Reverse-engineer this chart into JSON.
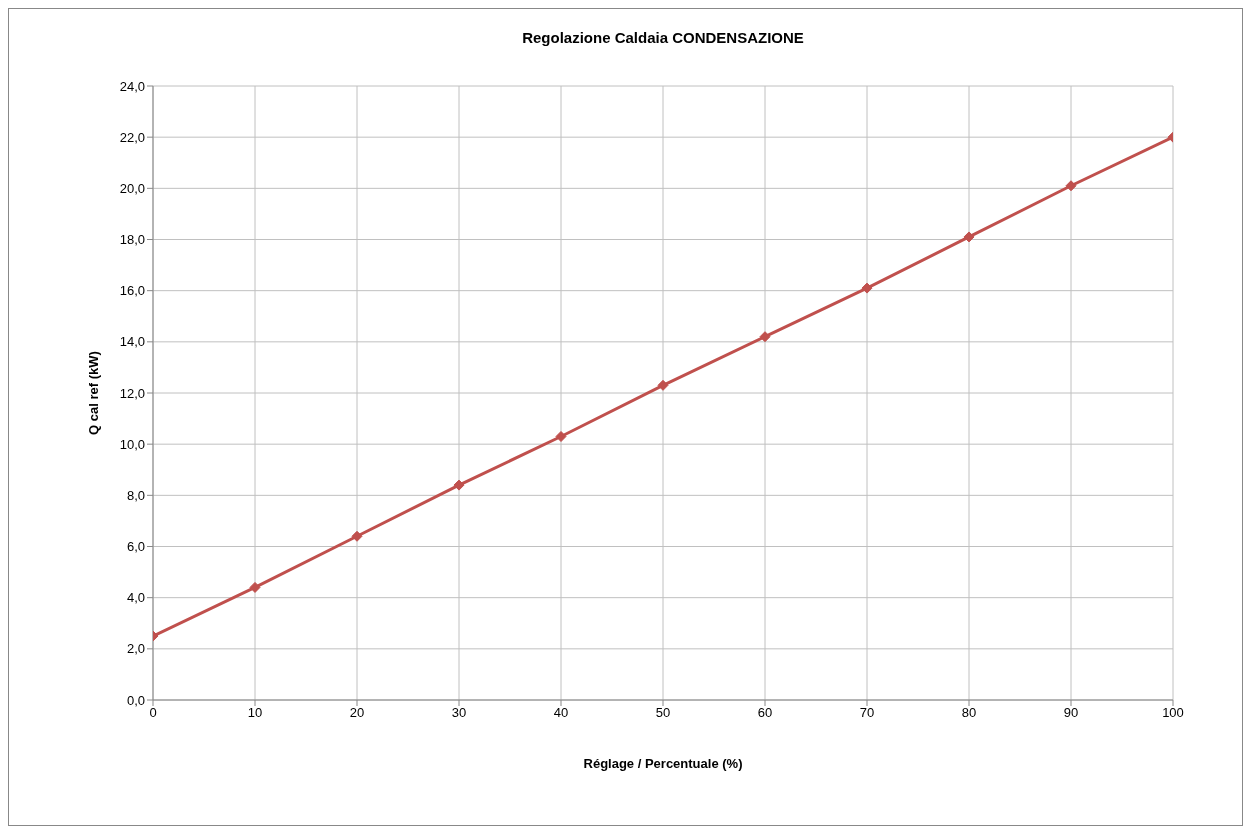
{
  "chart_data": {
    "type": "line",
    "title": "Regolazione Caldaia CONDENSAZIONE",
    "xlabel": "Réglage / Percentuale (%)",
    "ylabel": "Q cal ref (kW)",
    "x": [
      0,
      10,
      20,
      30,
      40,
      50,
      60,
      70,
      80,
      90,
      100
    ],
    "series": [
      {
        "color": "#c0504d",
        "values": [
          2.5,
          4.4,
          6.4,
          8.4,
          10.3,
          12.3,
          14.2,
          16.1,
          18.1,
          20.1,
          22.0
        ]
      }
    ],
    "xlim": [
      0,
      100
    ],
    "xticks": [
      0,
      10,
      20,
      30,
      40,
      50,
      60,
      70,
      80,
      90,
      100
    ],
    "ylim": [
      0,
      24
    ],
    "yticks": [
      {
        "value": 0,
        "label": "0,0"
      },
      {
        "value": 2,
        "label": "2,0"
      },
      {
        "value": 4,
        "label": "4,0"
      },
      {
        "value": 6,
        "label": "6,0"
      },
      {
        "value": 8,
        "label": "8,0"
      },
      {
        "value": 10,
        "label": "10,0"
      },
      {
        "value": 12,
        "label": "12,0"
      },
      {
        "value": 14,
        "label": "14,0"
      },
      {
        "value": 16,
        "label": "16,0"
      },
      {
        "value": 18,
        "label": "18,0"
      },
      {
        "value": 20,
        "label": "20,0"
      },
      {
        "value": 22,
        "label": "22,0"
      },
      {
        "value": 24,
        "label": "24,0"
      }
    ],
    "grid": true,
    "marker": "diamond",
    "line_style": "solid"
  }
}
